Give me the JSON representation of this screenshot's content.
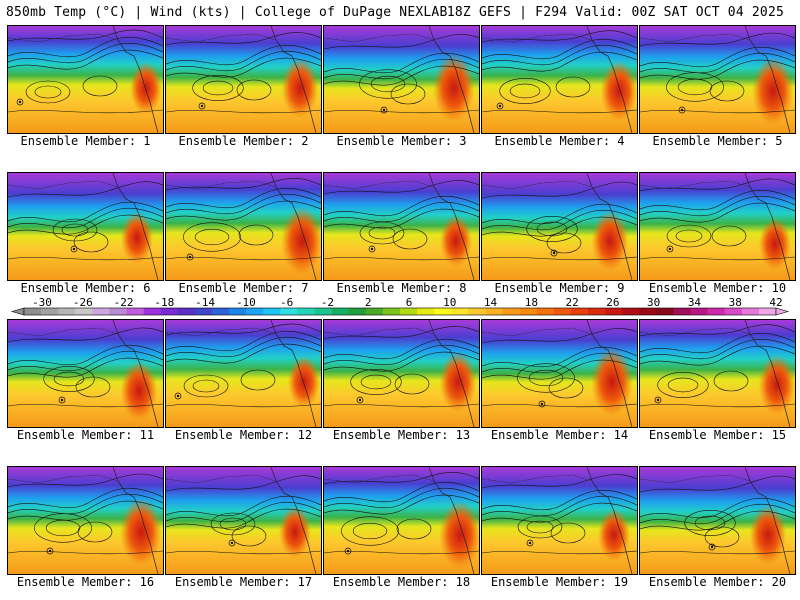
{
  "header": {
    "left": "850mb Temp (°C) | Wind (kts) | College of DuPage NEXLAB",
    "right": "18Z GEFS | F294 Valid: 00Z SAT OCT 04 2025"
  },
  "panels": [
    {
      "label": "Ensemble Member: 1"
    },
    {
      "label": "Ensemble Member: 2"
    },
    {
      "label": "Ensemble Member: 3"
    },
    {
      "label": "Ensemble Member: 4"
    },
    {
      "label": "Ensemble Member: 5"
    },
    {
      "label": "Ensemble Member: 6"
    },
    {
      "label": "Ensemble Member: 7"
    },
    {
      "label": "Ensemble Member: 8"
    },
    {
      "label": "Ensemble Member: 9"
    },
    {
      "label": "Ensemble Member: 10"
    },
    {
      "label": "Ensemble Member: 11"
    },
    {
      "label": "Ensemble Member: 12"
    },
    {
      "label": "Ensemble Member: 13"
    },
    {
      "label": "Ensemble Member: 14"
    },
    {
      "label": "Ensemble Member: 15"
    },
    {
      "label": "Ensemble Member: 16"
    },
    {
      "label": "Ensemble Member: 17"
    },
    {
      "label": "Ensemble Member: 18"
    },
    {
      "label": "Ensemble Member: 19"
    },
    {
      "label": "Ensemble Member: 20"
    }
  ],
  "colorbar": {
    "ticks": [
      "-30",
      "-26",
      "-22",
      "-18",
      "-14",
      "-10",
      "-6",
      "-2",
      "2",
      "6",
      "10",
      "14",
      "18",
      "22",
      "26",
      "30",
      "34",
      "38",
      "42"
    ],
    "colors": [
      "#8f8f8f",
      "#a2a2a2",
      "#b6b6b6",
      "#c8c8c8",
      "#cfa6e0",
      "#b98bd2",
      "#c35de0",
      "#a034e0",
      "#7a2ad6",
      "#5a30c8",
      "#3f46c8",
      "#2c64d8",
      "#1f86e8",
      "#1ba6f2",
      "#1dc6f2",
      "#2ee0e0",
      "#24d4b4",
      "#1cc490",
      "#17b062",
      "#229e3c",
      "#4caa2a",
      "#7cc21c",
      "#b4da14",
      "#e6ea16",
      "#fafa1e",
      "#fce42a",
      "#fdc82e",
      "#fdb224",
      "#f89a1c",
      "#f68a12",
      "#f2720e",
      "#ee5a0c",
      "#e8400c",
      "#dc2a10",
      "#c81812",
      "#b00e16",
      "#980a18",
      "#88081c",
      "#a0105a",
      "#b81886",
      "#cc2aac",
      "#da4ac8",
      "#e47ad8",
      "#eca8e6"
    ]
  }
}
